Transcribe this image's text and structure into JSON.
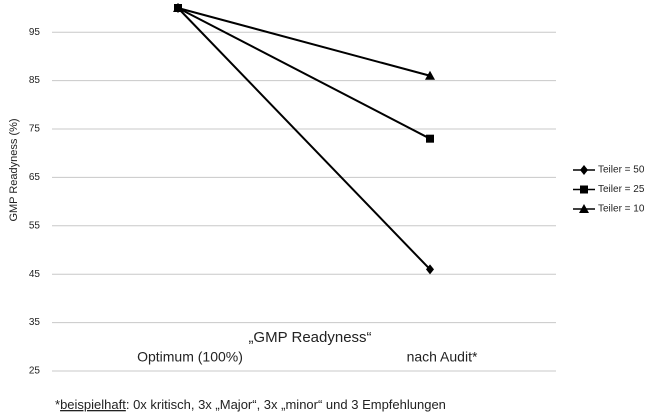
{
  "chart_data": {
    "type": "line",
    "ylabel": "GMP Readyness (%)",
    "xlabel": "„GMP Readyness“",
    "categories": [
      "Optimum (100%)",
      "nach Audit*"
    ],
    "series": [
      {
        "name": "Teiler = 50",
        "color": "#000000",
        "marker": "diamond",
        "values": [
          100,
          46
        ]
      },
      {
        "name": "Teiler = 25",
        "color": "#000000",
        "marker": "square",
        "values": [
          100,
          73
        ]
      },
      {
        "name": "Teiler = 10",
        "color": "#000000",
        "marker": "triangle",
        "values": [
          100,
          86
        ]
      }
    ],
    "ylim": [
      25,
      100
    ],
    "yticks": [
      25,
      35,
      45,
      55,
      65,
      75,
      85,
      95
    ],
    "grid": true,
    "legend": "right"
  },
  "footnote": [
    "*",
    "beispielhaft",
    ": 0x kritisch, 3x „Major“, 3x „minor“ und 3 Empfehlungen"
  ]
}
